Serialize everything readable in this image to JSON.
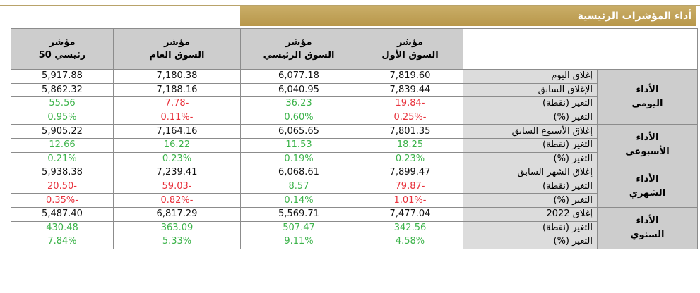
{
  "title": "أداء المؤشرات الرئيسية",
  "table": {
    "headers": [
      [
        "مؤشر",
        "السوق الأول"
      ],
      [
        "مؤشر",
        "السوق الرئيسي"
      ],
      [
        "مؤشر",
        "السوق العام"
      ],
      [
        "مؤشر",
        "رئيسي 50"
      ]
    ],
    "groups": [
      {
        "label": [
          "الأداء",
          "اليومي"
        ],
        "rows": [
          {
            "label": "إغلاق اليوم",
            "values": [
              "7,819.60",
              "6,077.18",
              "7,180.38",
              "5,917.88"
            ]
          },
          {
            "label": "الإغلاق السابق",
            "values": [
              "7,839.44",
              "6,040.95",
              "7,188.16",
              "5,862.32"
            ]
          },
          {
            "label": "التغير (نقطة)",
            "values": [
              "-19.84",
              "36.23",
              "-7.78",
              "55.56"
            ]
          },
          {
            "label": "التغير (%)",
            "values": [
              "-0.25%",
              "0.60%",
              "-0.11%",
              "0.95%"
            ]
          }
        ]
      },
      {
        "label": [
          "الأداء",
          "الأسبوعي"
        ],
        "rows": [
          {
            "label": "إغلاق الأسبوع السابق",
            "values": [
              "7,801.35",
              "6,065.65",
              "7,164.16",
              "5,905.22"
            ]
          },
          {
            "label": "التغير (نقطة)",
            "values": [
              "18.25",
              "11.53",
              "16.22",
              "12.66"
            ]
          },
          {
            "label": "التغير (%)",
            "values": [
              "0.23%",
              "0.19%",
              "0.23%",
              "0.21%"
            ]
          }
        ]
      },
      {
        "label": [
          "الأداء",
          "الشهري"
        ],
        "rows": [
          {
            "label": "إغلاق الشهر السابق",
            "values": [
              "7,899.47",
              "6,068.61",
              "7,239.41",
              "5,938.38"
            ]
          },
          {
            "label": "التغير (نقطة)",
            "values": [
              "-79.87",
              "8.57",
              "-59.03",
              "-20.50"
            ]
          },
          {
            "label": "التغير (%)",
            "values": [
              "-1.01%",
              "0.14%",
              "-0.82%",
              "-0.35%"
            ]
          }
        ]
      },
      {
        "label": [
          "الأداء",
          "السنوي"
        ],
        "rows": [
          {
            "label": "إغلاق 2022",
            "values": [
              "7,477.04",
              "5,569.71",
              "6,817.29",
              "5,487.40"
            ]
          },
          {
            "label": "التغير (نقطة)",
            "values": [
              "342.56",
              "507.47",
              "363.09",
              "430.48"
            ]
          },
          {
            "label": "التغير (%)",
            "values": [
              "4.58%",
              "9.11%",
              "5.33%",
              "7.84%"
            ]
          }
        ]
      }
    ]
  }
}
